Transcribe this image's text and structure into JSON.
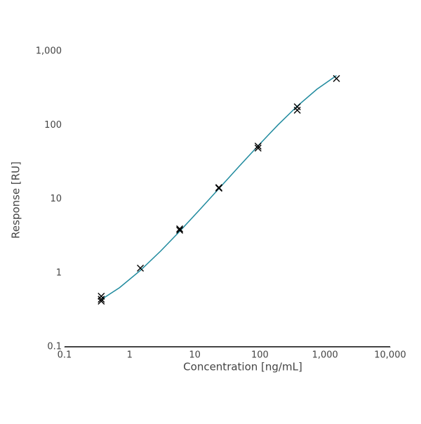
{
  "chart_data": {
    "type": "scatter",
    "x_label": "Concentration [ng/mL]",
    "y_label": "Response [RU]",
    "log_x": true,
    "log_y": true,
    "grid": false,
    "xlim": [
      0.1,
      10000
    ],
    "ylim": [
      0.1,
      1000
    ],
    "xticks": [
      0.1,
      1,
      10,
      100,
      {
        "value": 1000,
        "label": "1,000"
      },
      {
        "value": 10000,
        "label": "10,000"
      }
    ],
    "yticks": [
      0.1,
      1,
      10,
      100,
      {
        "value": 1000,
        "label": "1,000"
      }
    ],
    "series": [
      {
        "type": "scatter",
        "color": "#000000",
        "x": [
          0.366,
          0.366,
          0.366,
          1.46,
          5.86,
          5.86,
          23.44,
          23.44,
          93.75,
          93.75,
          375,
          375,
          1500
        ],
        "values": [
          0.483,
          0.415,
          0.44,
          1.16,
          3.95,
          3.78,
          14.3,
          14.0,
          52,
          48.8,
          177,
          159,
          427
        ]
      },
      {
        "type": "line",
        "color": "#1f8a9e",
        "x": [
          0.366,
          0.7,
          1.46,
          3,
          5.86,
          12,
          23.44,
          47,
          93.75,
          190,
          375,
          750,
          1500
        ],
        "values": [
          0.435,
          0.632,
          1.08,
          1.98,
          3.65,
          7.23,
          13.8,
          27.1,
          52.5,
          101,
          181,
          306,
          469
        ]
      }
    ]
  }
}
